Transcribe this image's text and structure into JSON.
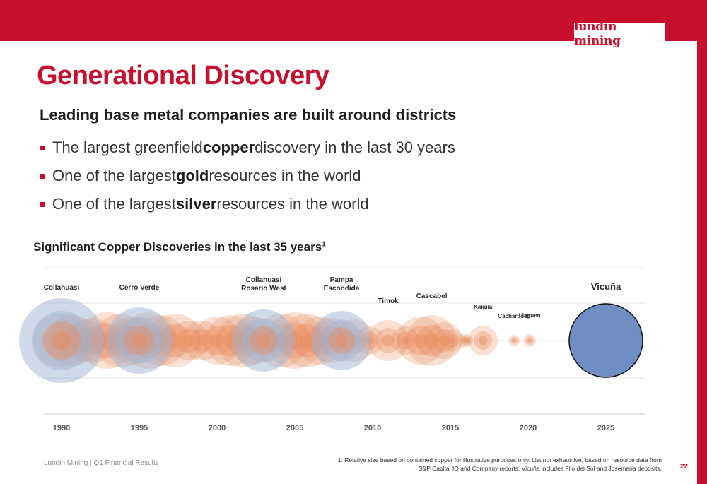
{
  "brand": {
    "logo_text": "lundin mining",
    "accent": "#c8102e"
  },
  "title": "Generational Discovery",
  "subtitle": "Leading base metal companies are built around districts",
  "bullets": [
    {
      "pre": "The largest greenfield ",
      "bold": "copper",
      "post": " discovery in the last 30 years"
    },
    {
      "pre": "One of the largest ",
      "bold": "gold",
      "post": " resources in the world"
    },
    {
      "pre": "One of the largest ",
      "bold": "silver",
      "post": " resources in the world"
    }
  ],
  "chart_heading": {
    "text": "Significant Copper Discoveries in the last 35 years",
    "sup": "1"
  },
  "chart_data": {
    "type": "scatter",
    "x_ticks": [
      "1990",
      "1995",
      "2000",
      "2005",
      "2010",
      "2015",
      "2020",
      "2025"
    ],
    "xlim": [
      1989,
      2027
    ],
    "grid": true,
    "legend": "none",
    "colors": {
      "others": "#e88e62",
      "highlighted": "#9db3d6",
      "vicuna": "#6f8fc4"
    },
    "labeled": [
      {
        "name": "Collahuasi",
        "year": 1990.0,
        "relative_size": 60
      },
      {
        "name": "Cerro Verde",
        "year": 1995.0,
        "relative_size": 47
      },
      {
        "name": "Collahuasi\nRosario West",
        "year": 2003.0,
        "relative_size": 44
      },
      {
        "name": "Pampa\nEscondida",
        "year": 2008.0,
        "relative_size": 42
      },
      {
        "name": "Timok",
        "year": 2011.0,
        "relative_size": 29
      },
      {
        "name": "Cascabel",
        "year": 2013.8,
        "relative_size": 36
      },
      {
        "name": "Kakula",
        "year": 2017.1,
        "relative_size": 21
      },
      {
        "name": "Cacharposa",
        "year": 2019.1,
        "relative_size": 8
      },
      {
        "name": "Llaguen",
        "year": 2020.1,
        "relative_size": 9
      },
      {
        "name": "Vicuña",
        "year": 2025.0,
        "relative_size": 52
      }
    ],
    "unlabeled": [
      {
        "year": 1989.9,
        "relative_size": 38
      },
      {
        "year": 1990.7,
        "relative_size": 36
      },
      {
        "year": 1991.5,
        "relative_size": 30
      },
      {
        "year": 1992.0,
        "relative_size": 32
      },
      {
        "year": 1992.9,
        "relative_size": 40
      },
      {
        "year": 1993.8,
        "relative_size": 38
      },
      {
        "year": 1994.6,
        "relative_size": 34
      },
      {
        "year": 1995.6,
        "relative_size": 40
      },
      {
        "year": 1996.4,
        "relative_size": 36
      },
      {
        "year": 1997.3,
        "relative_size": 38
      },
      {
        "year": 1998.2,
        "relative_size": 28
      },
      {
        "year": 1999.0,
        "relative_size": 28
      },
      {
        "year": 2000.0,
        "relative_size": 34
      },
      {
        "year": 2000.9,
        "relative_size": 36
      },
      {
        "year": 2001.7,
        "relative_size": 38
      },
      {
        "year": 2002.3,
        "relative_size": 34
      },
      {
        "year": 2004.1,
        "relative_size": 38
      },
      {
        "year": 2005.0,
        "relative_size": 40
      },
      {
        "year": 2005.8,
        "relative_size": 38
      },
      {
        "year": 2006.6,
        "relative_size": 34
      },
      {
        "year": 2007.4,
        "relative_size": 32
      },
      {
        "year": 2008.8,
        "relative_size": 30
      },
      {
        "year": 2009.8,
        "relative_size": 20
      },
      {
        "year": 2012.1,
        "relative_size": 20
      },
      {
        "year": 2013.1,
        "relative_size": 34
      },
      {
        "year": 2014.6,
        "relative_size": 26
      },
      {
        "year": 2015.1,
        "relative_size": 16
      },
      {
        "year": 2016.1,
        "relative_size": 8
      },
      {
        "year": 2015.9,
        "relative_size": 10
      }
    ]
  },
  "footer": {
    "left": "Lundin Mining | Q1 Financial Results",
    "footnote": "1. Relative size based on contained copper for illustrative purposes only. List not exhaustive, based on resource data from S&P Capital IQ and Company reports. Vicuña includes Filo del Sol and Josemaria deposits.",
    "page": "22"
  }
}
